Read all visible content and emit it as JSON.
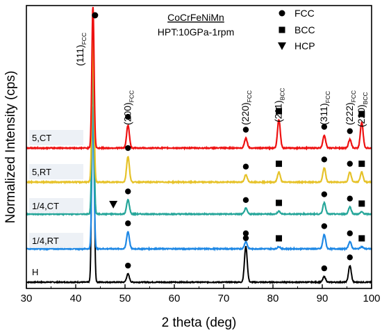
{
  "chart_data": {
    "type": "line",
    "title": "CoCrFeNiMn",
    "subtitle": "HPT:10GPa-1rpm",
    "xlabel": "2 theta (deg)",
    "ylabel": "Normalized Intensity (cps)",
    "xlim": [
      30,
      100
    ],
    "xticks": [
      30,
      40,
      50,
      60,
      70,
      80,
      90,
      100
    ],
    "y_tick_labels": "none",
    "grid": false,
    "legend": {
      "placement": "top-right",
      "entries": [
        {
          "marker": "circle",
          "label": "FCC"
        },
        {
          "marker": "square",
          "label": "BCC"
        },
        {
          "marker": "triangle-down",
          "label": "HCP"
        }
      ]
    },
    "peak_labels": [
      {
        "main": "(111)",
        "sub": "FCC",
        "x": 43.5
      },
      {
        "main": "(200)",
        "sub": "FCC",
        "x": 50.6
      },
      {
        "main": "(220)",
        "sub": "FCC",
        "x": 74.5
      },
      {
        "main": "(211)",
        "sub": "BCC",
        "x": 81.2
      },
      {
        "main": "(311)",
        "sub": "FCC",
        "x": 90.4
      },
      {
        "main": "(222)",
        "sub": "FCC",
        "x": 95.6
      },
      {
        "main": "(220)",
        "sub": "BCC",
        "x": 98.0
      }
    ],
    "series": [
      {
        "name": "H",
        "color": "#000000",
        "offset": 0,
        "peaks": [
          {
            "x": 43.5,
            "h": 1.0,
            "phase": "FCC"
          },
          {
            "x": 50.6,
            "h": 0.03,
            "phase": "FCC"
          },
          {
            "x": 74.5,
            "h": 0.13,
            "phase": "FCC"
          },
          {
            "x": 90.4,
            "h": 0.02,
            "phase": "FCC"
          },
          {
            "x": 95.6,
            "h": 0.06,
            "phase": "FCC"
          }
        ]
      },
      {
        "name": "1/4,RT",
        "color": "#1e88e5",
        "offset": 1,
        "peaks": [
          {
            "x": 43.5,
            "h": 1.0,
            "phase": "FCC"
          },
          {
            "x": 50.6,
            "h": 0.12,
            "phase": "FCC"
          },
          {
            "x": 74.5,
            "h": 0.05,
            "phase": "FCC"
          },
          {
            "x": 81.2,
            "h": 0.015,
            "phase": "BCC"
          },
          {
            "x": 90.4,
            "h": 0.1,
            "phase": "FCC"
          },
          {
            "x": 95.6,
            "h": 0.05,
            "phase": "FCC"
          },
          {
            "x": 98.0,
            "h": 0.015,
            "phase": "BCC"
          }
        ]
      },
      {
        "name": "1/4,CT",
        "color": "#26a69a",
        "offset": 2,
        "peaks": [
          {
            "x": 43.5,
            "h": 1.0,
            "phase": "FCC"
          },
          {
            "x": 46.5,
            "h": 0.0,
            "phase": "HCP"
          },
          {
            "x": 50.6,
            "h": 0.1,
            "phase": "FCC"
          },
          {
            "x": 74.5,
            "h": 0.04,
            "phase": "FCC"
          },
          {
            "x": 81.2,
            "h": 0.02,
            "phase": "BCC"
          },
          {
            "x": 90.4,
            "h": 0.08,
            "phase": "FCC"
          },
          {
            "x": 95.6,
            "h": 0.05,
            "phase": "FCC"
          },
          {
            "x": 98.0,
            "h": 0.015,
            "phase": "BCC"
          }
        ]
      },
      {
        "name": "5,RT",
        "color": "#e6c229",
        "offset": 3,
        "peaks": [
          {
            "x": 43.5,
            "h": 1.0,
            "phase": "FCC"
          },
          {
            "x": 50.6,
            "h": 0.18,
            "phase": "FCC"
          },
          {
            "x": 74.5,
            "h": 0.05,
            "phase": "FCC"
          },
          {
            "x": 81.2,
            "h": 0.07,
            "phase": "BCC"
          },
          {
            "x": 90.4,
            "h": 0.1,
            "phase": "FCC"
          },
          {
            "x": 95.6,
            "h": 0.07,
            "phase": "FCC"
          },
          {
            "x": 98.0,
            "h": 0.07,
            "phase": "BCC"
          }
        ]
      },
      {
        "name": "5,CT",
        "color": "#ee1111",
        "offset": 4,
        "peaks": [
          {
            "x": 43.5,
            "h": 1.0,
            "phase": "FCC"
          },
          {
            "x": 50.6,
            "h": 0.16,
            "phase": "FCC"
          },
          {
            "x": 74.5,
            "h": 0.07,
            "phase": "FCC"
          },
          {
            "x": 81.2,
            "h": 0.2,
            "phase": "BCC"
          },
          {
            "x": 90.4,
            "h": 0.09,
            "phase": "FCC"
          },
          {
            "x": 95.6,
            "h": 0.06,
            "phase": "FCC"
          },
          {
            "x": 98.0,
            "h": 0.18,
            "phase": "BCC"
          }
        ]
      }
    ]
  }
}
